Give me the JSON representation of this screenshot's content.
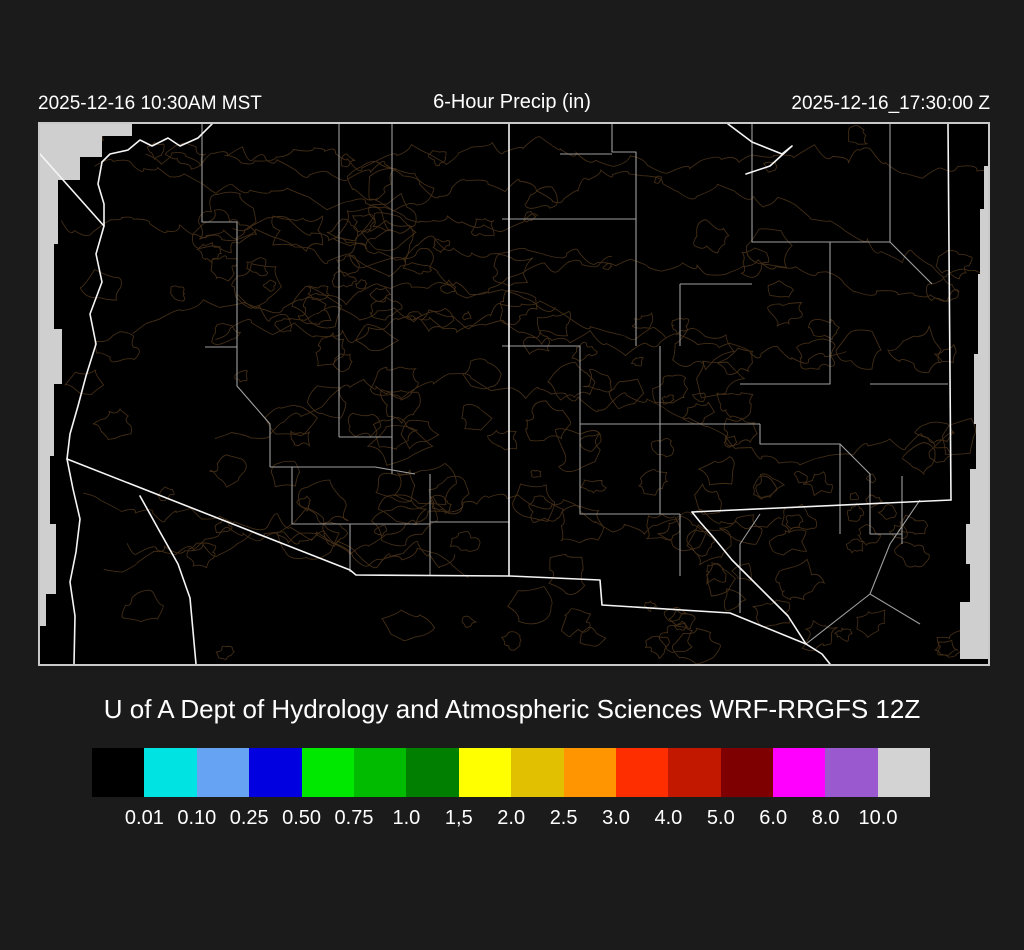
{
  "header": {
    "left_timestamp": "2025-12-16 10:30AM MST",
    "title": "6-Hour Precip (in)",
    "right_timestamp": "2025-12-16_17:30:00 Z"
  },
  "caption": "U of A Dept of Hydrology and Atmospheric Sciences WRF-RRGFS 12Z",
  "chart_data": {
    "type": "heatmap",
    "title": "6-Hour Precip (in)",
    "valid_time_local": "2025-12-16 10:30AM MST",
    "valid_time_utc": "2025-12-16_17:30:00 Z",
    "model": "WRF-RRGFS 12Z",
    "source_caption": "U of A Dept of Hydrology and Atmospheric Sciences WRF-RRGFS 12Z",
    "region": "Arizona and New Mexico with county borders, state borders, rivers and terrain contours",
    "field_values": "no precipitation shaded anywhere on map (entire domain below lowest 0.01 in threshold, map interior black)",
    "legend_position": "bottom",
    "colorbar": {
      "units": "in",
      "thresholds": [
        "0.01",
        "0.10",
        "0.25",
        "0.50",
        "0.75",
        "1.0",
        "1,5",
        "2.0",
        "2.5",
        "3.0",
        "4.0",
        "5.0",
        "6.0",
        "8.0",
        "10.0"
      ],
      "colors": [
        "#000000",
        "#00E3E3",
        "#66A3F2",
        "#0000E0",
        "#00E800",
        "#00BB00",
        "#007F00",
        "#FFFF00",
        "#E0C000",
        "#FF9500",
        "#FF2E00",
        "#C21800",
        "#7F0000",
        "#FF00FF",
        "#9B59D0",
        "#D3D3D3"
      ]
    },
    "map_colors": {
      "background": "#000000",
      "state_borders_rivers": "#f5f5f5",
      "county_borders": "#9e9e9e",
      "terrain_contours": "#463018",
      "domain_edge": "#cfcfcf",
      "frame": "#c9c9c9"
    }
  }
}
